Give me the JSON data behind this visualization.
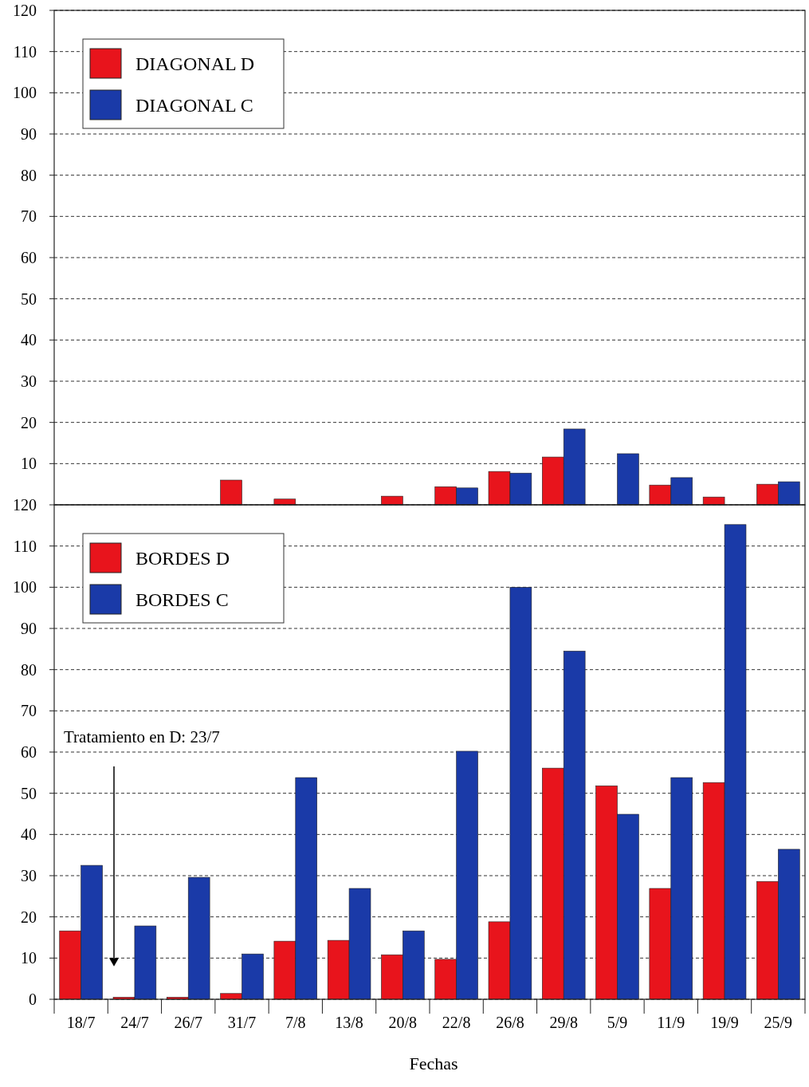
{
  "chart_data": [
    {
      "type": "bar",
      "categories": [
        null,
        null,
        null,
        null,
        null,
        null,
        null,
        null,
        null,
        null,
        null,
        null,
        null,
        null
      ],
      "series": [
        {
          "name": "DIAGONAL D",
          "color": "#e8141c",
          "values": [
            null,
            null,
            null,
            6.0,
            1.4,
            null,
            2.1,
            4.4,
            8.1,
            11.6,
            null,
            4.8,
            1.9,
            5.0
          ]
        },
        {
          "name": "DIAGONAL C",
          "color": "#1a3aa8",
          "values": [
            null,
            null,
            null,
            null,
            null,
            null,
            null,
            4.1,
            7.7,
            18.4,
            12.4,
            6.6,
            null,
            5.6
          ]
        }
      ],
      "ylim": [
        0,
        120
      ],
      "yticks": [
        10,
        20,
        30,
        40,
        50,
        60,
        70,
        80,
        90,
        100,
        110,
        120
      ],
      "grid": "y",
      "legend": "top left"
    },
    {
      "type": "bar",
      "categories": [
        "18/7",
        "24/7",
        "26/7",
        "31/7",
        "7/8",
        "13/8",
        "20/8",
        "22/8",
        "26/8",
        "29/8",
        "5/9",
        "11/9",
        "19/9",
        "25/9"
      ],
      "series": [
        {
          "name": "BORDES D",
          "color": "#e8141c",
          "values": [
            16.6,
            0.5,
            0.5,
            1.4,
            14.1,
            14.3,
            10.8,
            9.7,
            18.8,
            56.1,
            51.8,
            26.9,
            52.6,
            28.6
          ]
        },
        {
          "name": "BORDES C",
          "color": "#1a3aa8",
          "values": [
            32.5,
            17.8,
            29.6,
            11.0,
            53.8,
            26.9,
            16.6,
            60.2,
            100,
            84.5,
            44.9,
            53.8,
            115.2,
            36.4
          ]
        }
      ],
      "ylim": [
        0,
        120
      ],
      "yticks": [
        0,
        10,
        20,
        30,
        40,
        50,
        60,
        70,
        80,
        90,
        100,
        110,
        120
      ],
      "grid": "y",
      "legend": "top left",
      "xlabel": "Fechas",
      "annotations": [
        "Tratamiento en D: 23/7"
      ]
    }
  ]
}
